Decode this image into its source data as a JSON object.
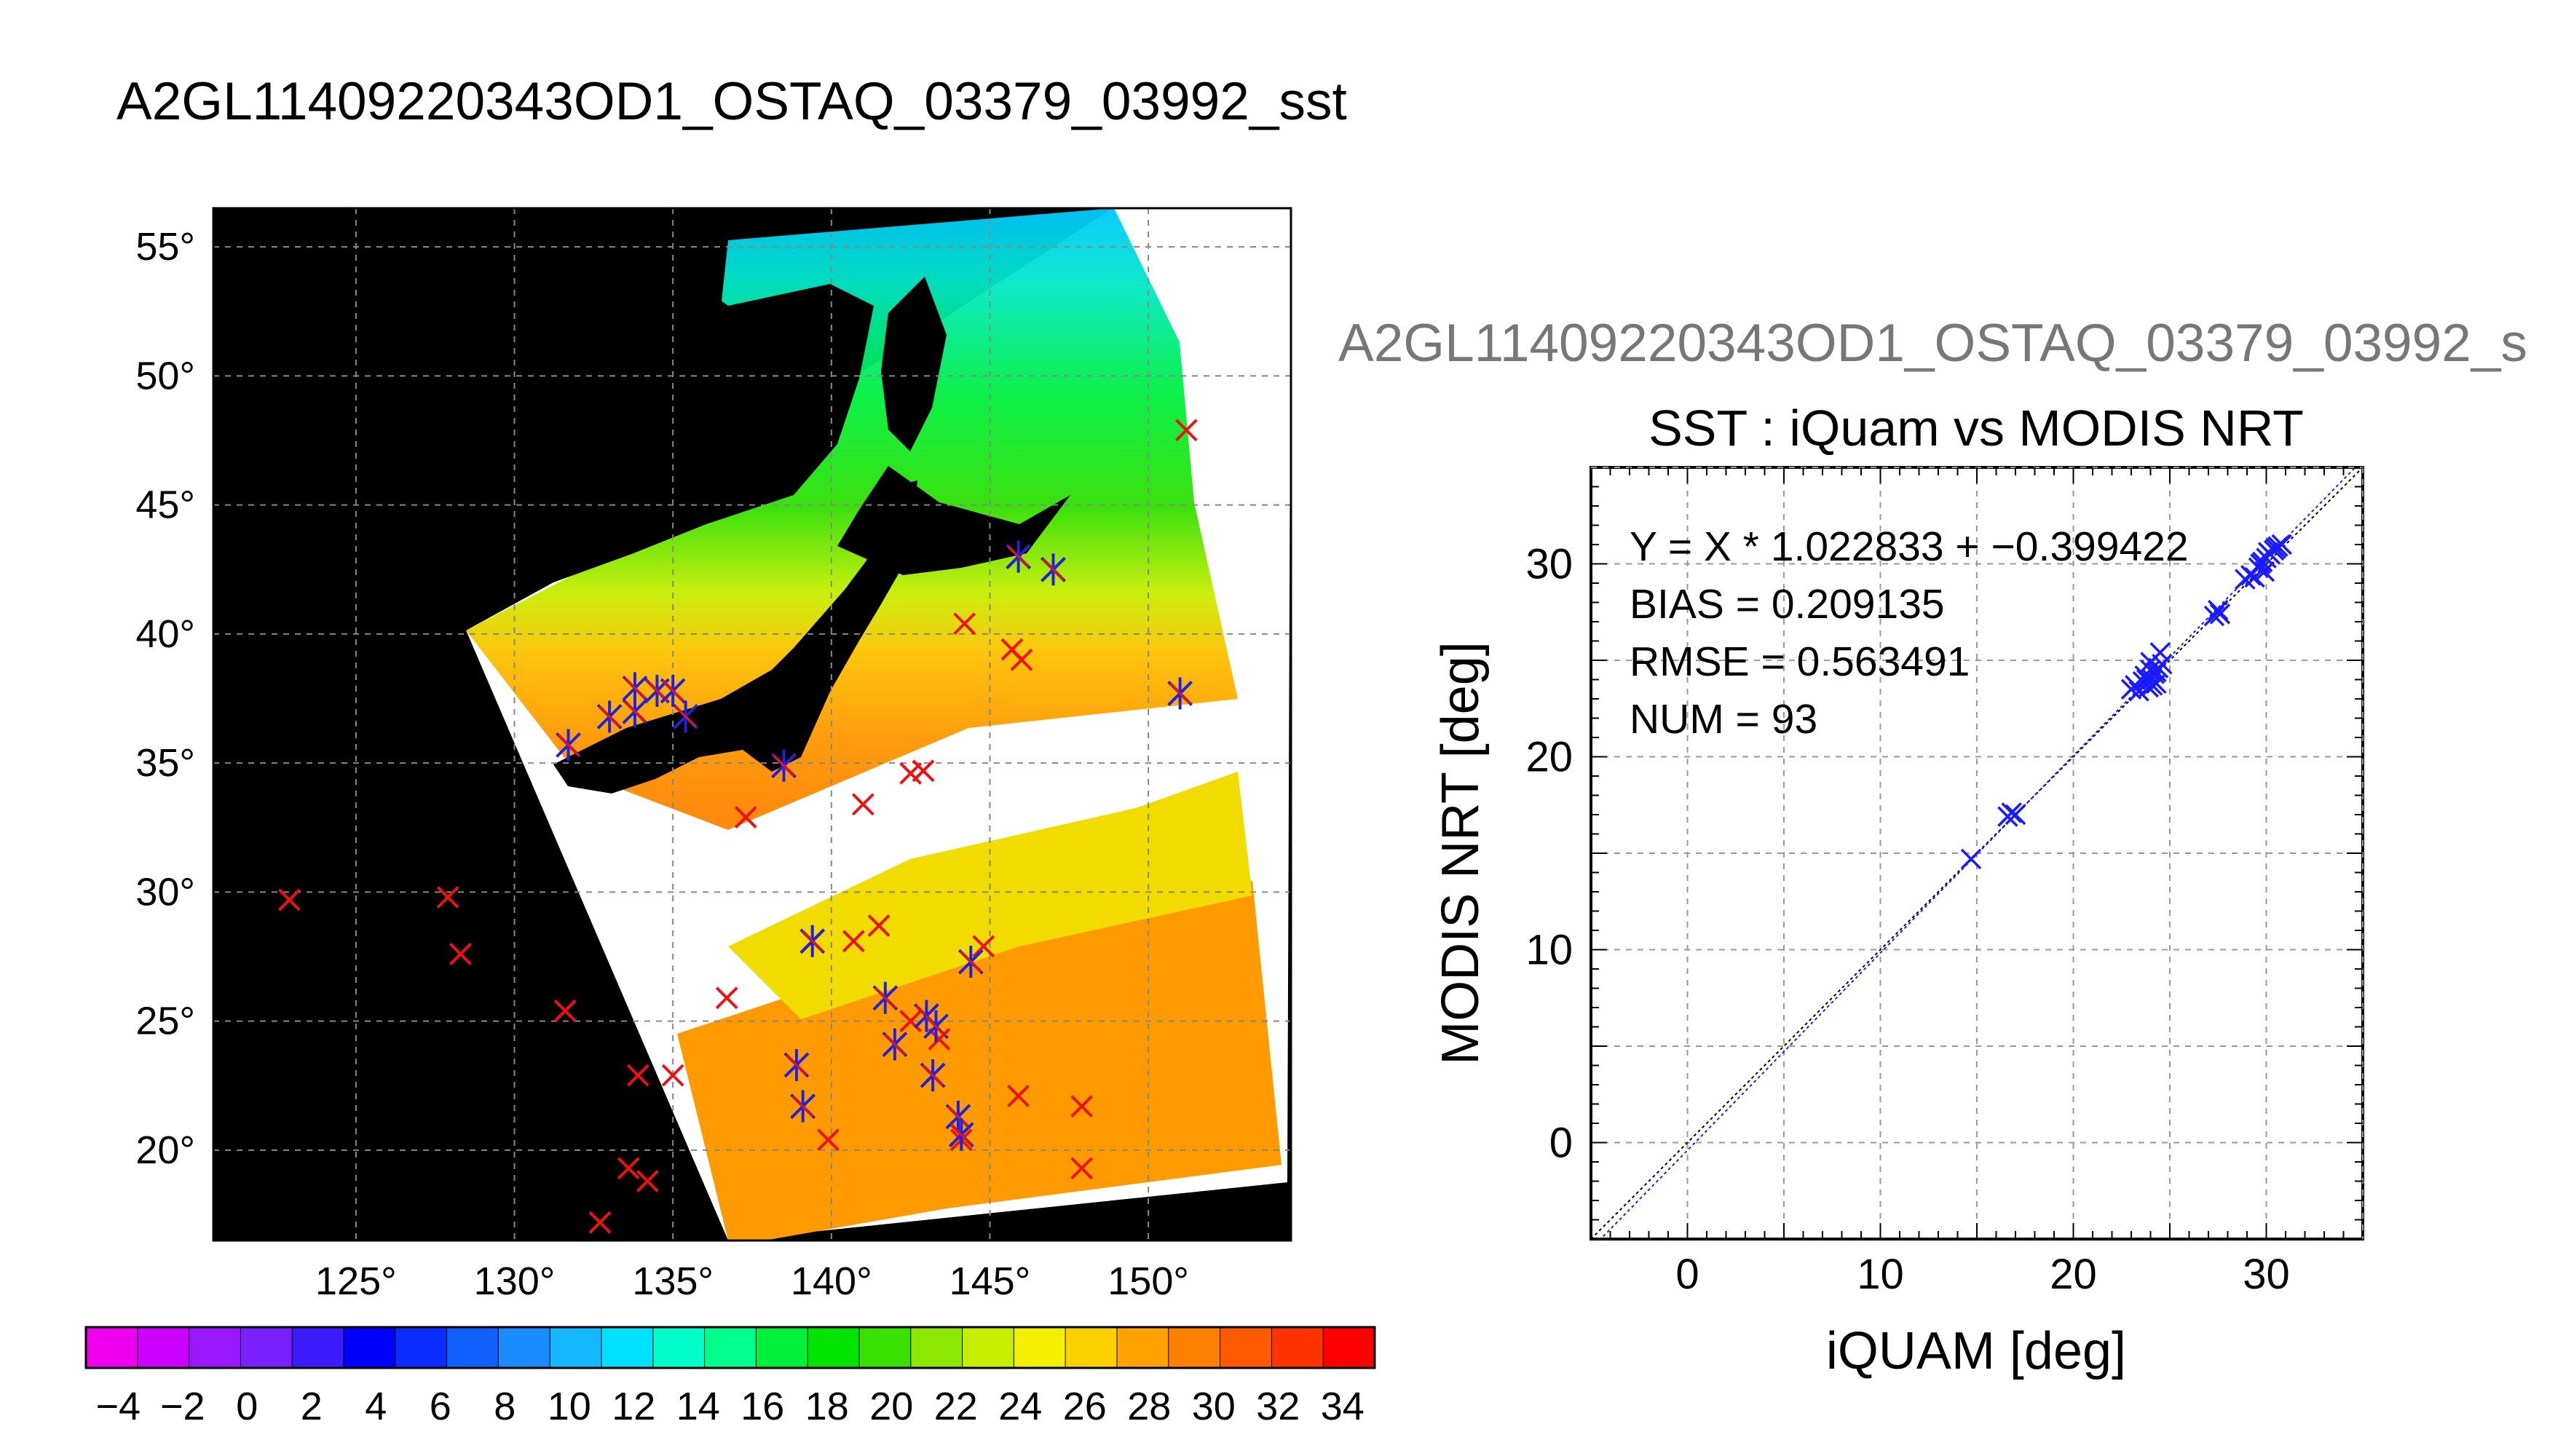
{
  "main_title": "A2GL11409220343OD1_OSTAQ_03379_03992_sst",
  "scatter_file_title": "A2GL11409220343OD1_OSTAQ_03379_03992_s",
  "colors": {
    "match_marker": "#2222dd",
    "unmatched_marker": "#ee1111",
    "scatter_marker": "#1a1aff",
    "land": "#000000",
    "no_data": "#ffffff"
  },
  "chart_data": [
    {
      "type": "heatmap",
      "title": "",
      "projection": "lat-lon",
      "xlim": [
        120.5,
        154.5
      ],
      "ylim": [
        16.5,
        56.5
      ],
      "x_ticks": [
        "125°",
        "130°",
        "135°",
        "140°",
        "145°",
        "150°"
      ],
      "x_tick_values": [
        125,
        130,
        135,
        140,
        145,
        150
      ],
      "y_ticks": [
        "55°",
        "50°",
        "45°",
        "40°",
        "35°",
        "30°",
        "25°",
        "20°"
      ],
      "y_tick_values": [
        55,
        50,
        45,
        40,
        35,
        30,
        25,
        20
      ],
      "grid": true,
      "matched_points": [
        [
          131.7,
          35.7
        ],
        [
          133.0,
          36.8
        ],
        [
          133.8,
          37.9
        ],
        [
          133.8,
          37.0
        ],
        [
          134.5,
          37.8
        ],
        [
          135.0,
          37.8
        ],
        [
          135.4,
          36.8
        ],
        [
          138.5,
          34.9
        ],
        [
          139.4,
          28.1
        ],
        [
          141.7,
          25.9
        ],
        [
          143.0,
          25.2
        ],
        [
          143.3,
          24.8
        ],
        [
          142.0,
          24.1
        ],
        [
          143.2,
          22.9
        ],
        [
          138.9,
          23.3
        ],
        [
          139.1,
          21.7
        ],
        [
          144.0,
          21.3
        ],
        [
          144.1,
          20.6
        ],
        [
          145.9,
          43.0
        ],
        [
          147.0,
          42.5
        ],
        [
          151.0,
          37.7
        ],
        [
          144.4,
          27.3
        ]
      ],
      "unmatched_points": [
        [
          122.9,
          29.7
        ],
        [
          127.9,
          29.8
        ],
        [
          128.3,
          27.6
        ],
        [
          131.6,
          25.4
        ],
        [
          133.9,
          22.9
        ],
        [
          135.0,
          22.9
        ],
        [
          133.6,
          19.3
        ],
        [
          134.2,
          18.8
        ],
        [
          132.7,
          17.2
        ],
        [
          136.7,
          25.9
        ],
        [
          137.3,
          32.9
        ],
        [
          141.0,
          33.4
        ],
        [
          142.5,
          34.6
        ],
        [
          142.9,
          34.7
        ],
        [
          144.2,
          40.4
        ],
        [
          145.7,
          39.4
        ],
        [
          146.0,
          39.0
        ],
        [
          139.9,
          20.4
        ],
        [
          140.7,
          28.1
        ],
        [
          141.5,
          28.7
        ],
        [
          142.5,
          25.0
        ],
        [
          144.8,
          27.9
        ],
        [
          145.9,
          22.1
        ],
        [
          147.9,
          21.7
        ],
        [
          147.9,
          19.3
        ],
        [
          151.2,
          47.9
        ],
        [
          147.0,
          42.5
        ],
        [
          145.9,
          43.0
        ],
        [
          138.5,
          34.9
        ],
        [
          139.4,
          28.1
        ],
        [
          143.4,
          24.3
        ],
        [
          144.1,
          20.4
        ]
      ]
    },
    {
      "type": "scatter",
      "title": "SST : iQuam vs MODIS NRT",
      "xlabel": "iQUAM [deg]",
      "ylabel": "MODIS NRT [deg]",
      "xlim": [
        -5,
        35
      ],
      "ylim": [
        -5,
        35
      ],
      "x_ticks": [
        0,
        10,
        20,
        30
      ],
      "y_ticks": [
        0,
        10,
        20,
        30
      ],
      "grid": true,
      "annotations": [
        "Y = X * 1.022833 + −0.399422",
        "BIAS = 0.209135",
        "RMSE = 0.563491",
        "NUM = 93"
      ],
      "fit_line": {
        "slope": 1.022833,
        "intercept": -0.399422
      },
      "x": [
        14.7,
        16.6,
        16.8,
        17.0,
        23.0,
        23.2,
        23.4,
        23.6,
        23.8,
        23.9,
        24.0,
        24.1,
        24.2,
        24.3,
        24.4,
        24.5,
        24.0,
        23.7,
        24.1,
        24.3,
        24.6,
        27.3,
        27.5,
        27.6,
        28.9,
        29.2,
        29.4,
        29.6,
        29.8,
        30.0,
        30.2,
        30.4,
        30.6,
        30.8,
        29.7,
        30.1,
        29.9,
        30.5
      ],
      "y": [
        14.7,
        16.9,
        17.1,
        17.0,
        23.5,
        23.7,
        23.4,
        23.9,
        24.0,
        23.6,
        24.5,
        24.0,
        24.3,
        23.8,
        24.6,
        25.4,
        24.9,
        24.2,
        23.7,
        24.4,
        24.8,
        27.3,
        27.6,
        27.4,
        29.2,
        29.4,
        29.3,
        29.8,
        30.1,
        30.3,
        30.5,
        30.7,
        30.9,
        31.0,
        30.0,
        30.6,
        29.6,
        30.8
      ]
    },
    {
      "type": "colorbar",
      "title": "",
      "range": [
        -5,
        35
      ],
      "tick_labels": [
        "−4",
        "−2",
        "0",
        "2",
        "4",
        "6",
        "8",
        "10",
        "12",
        "14",
        "16",
        "18",
        "20",
        "22",
        "24",
        "26",
        "28",
        "30",
        "32",
        "34"
      ],
      "tick_values": [
        -4,
        -2,
        0,
        2,
        4,
        6,
        8,
        10,
        12,
        14,
        16,
        18,
        20,
        22,
        24,
        26,
        28,
        30,
        32,
        34
      ],
      "bins": [
        "#ee00ee",
        "#cc00ff",
        "#9a18ff",
        "#7a20ff",
        "#3c1cff",
        "#0000ff",
        "#0a2cff",
        "#1060ff",
        "#1a8cff",
        "#13b8ff",
        "#00e0ff",
        "#00ffc8",
        "#00ff8c",
        "#00f03c",
        "#00e400",
        "#3ae000",
        "#8ce800",
        "#c8ee00",
        "#f4f000",
        "#ffd000",
        "#ffa200",
        "#ff8000",
        "#ff5a00",
        "#ff3200",
        "#ff0000"
      ]
    }
  ]
}
